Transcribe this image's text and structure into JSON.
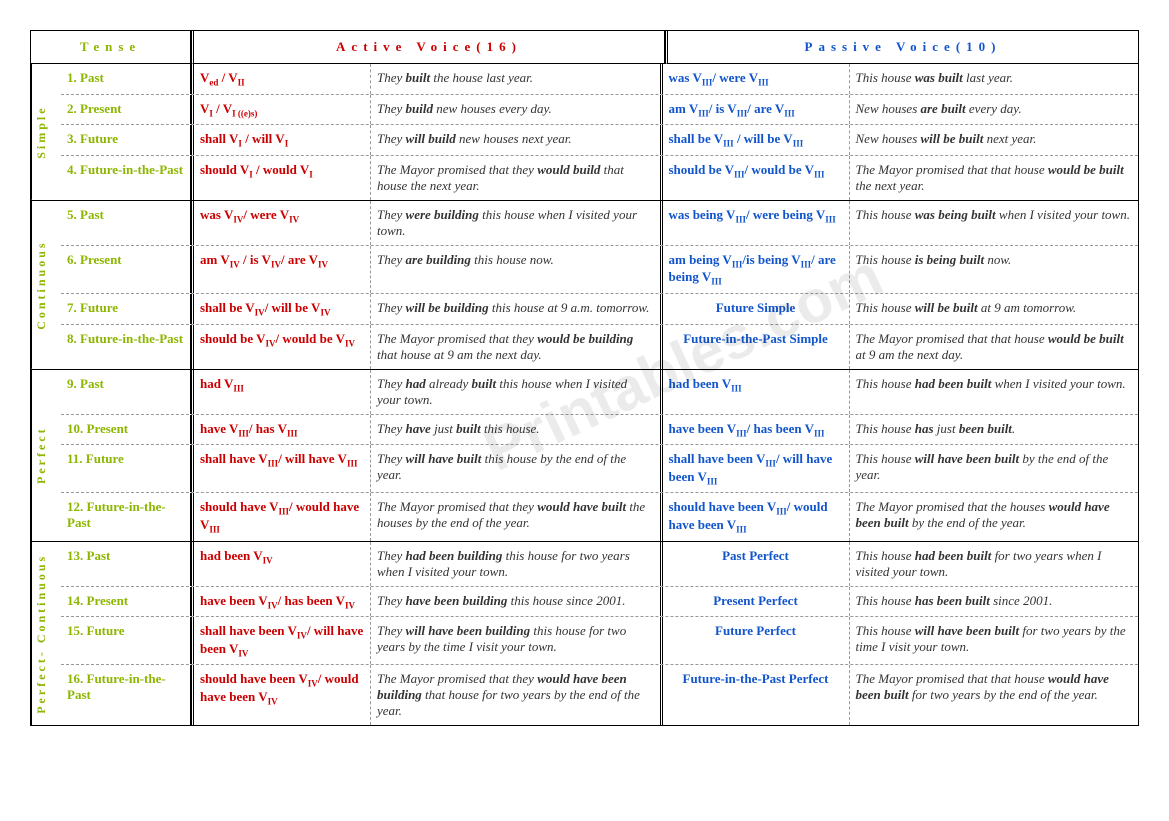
{
  "header": {
    "tense": "Tense",
    "active": "Active Voice(16)",
    "passive": "Passive Voice(10)"
  },
  "groups": [
    {
      "aspect": "Simple",
      "rows": [
        {
          "n": "1. Past",
          "af": "V<sub>ed</sub> / V<sub>II</sub>",
          "ae": "They <b>built</b> the house last year.",
          "pf": "was V<sub>III</sub>/ were V<sub>III</sub>",
          "pe": "This house <b>was built</b> last year."
        },
        {
          "n": "2. Present",
          "af": "V<sub>I</sub> / V<sub>I ((e)s)</sub>",
          "ae": "They <b>build</b> new houses every day.",
          "pf": "am V<sub>III</sub>/ is V<sub>III</sub>/ are V<sub>III</sub>",
          "pe": "New houses <b>are built</b> every day."
        },
        {
          "n": "3. Future",
          "af": "shall V<sub>I</sub> / will V<sub>I</sub>",
          "ae": "They <b>will build</b> new houses next year.",
          "pf": "shall be V<sub>III</sub> / will be V<sub>III</sub>",
          "pe": "New houses <b>will be built</b> next year."
        },
        {
          "n": "4. Future-in-the-Past",
          "af": "should V<sub>I</sub> / would V<sub>I</sub>",
          "ae": "The Mayor promised that they <b>would build</b> that house the next year.",
          "pf": "should be V<sub>III</sub>/ would be V<sub>III</sub>",
          "pe": "The Mayor promised that that house <b>would be built</b> the next year."
        }
      ]
    },
    {
      "aspect": "Continuous",
      "rows": [
        {
          "n": "5. Past",
          "af": "was V<sub>IV</sub>/ were V<sub>IV</sub>",
          "ae": "They <b>were building</b> this house when I visited your town.",
          "pf": "was being V<sub>III</sub>/ were being V<sub>III</sub>",
          "pe": "This house <b>was being built</b> when I visited your town."
        },
        {
          "n": "6. Present",
          "af": "am V<sub>IV</sub> / is V<sub>IV</sub>/ are V<sub>IV</sub>",
          "ae": "They <b>are building</b> this house now.",
          "pf": "am being V<sub>III</sub>/is being V<sub>III</sub>/ are being V<sub>III</sub>",
          "pe": "This house <b>is being built</b> now."
        },
        {
          "n": "7. Future",
          "af": "shall be V<sub>IV</sub>/ will be V<sub>IV</sub>",
          "ae": "They <b>will be building</b> this house at 9 a.m. tomorrow.",
          "pf": "Future Simple",
          "pe": "This house <b>will be built</b> at 9 am tomorrow.",
          "center": true
        },
        {
          "n": "8. Future-in-the-Past",
          "af": "should be V<sub>IV</sub>/ would be V<sub>IV</sub>",
          "ae": "The Mayor promised that they <b>would be building</b> that house at 9 am the next day.",
          "pf": "Future-in-the-Past Simple",
          "pe": "The Mayor promised that that house <b>would be built</b> at 9 am the next day.",
          "center": true
        }
      ]
    },
    {
      "aspect": "Perfect",
      "rows": [
        {
          "n": "9. Past",
          "af": "had V<sub>III</sub>",
          "ae": "They <b>had</b> already <b>built</b> this house when I visited your town.",
          "pf": "had been V<sub>III</sub>",
          "pe": "This house <b>had been built</b> when I visited your town."
        },
        {
          "n": "10. Present",
          "af": "have V<sub>III</sub>/ has V<sub>III</sub>",
          "ae": "They <b>have</b> just <b>built</b> this house.",
          "pf": "have been V<sub>III</sub>/ has been V<sub>III</sub>",
          "pe": "This house <b>has</b> just <b>been built</b>."
        },
        {
          "n": "11. Future",
          "af": "shall have V<sub>III</sub>/ will have V<sub>III</sub>",
          "ae": "They <b>will have built</b> this house by the end of the year.",
          "pf": "shall have been V<sub>III</sub>/ will have been V<sub>III</sub>",
          "pe": "This house <b>will have been built</b> by the end of the year."
        },
        {
          "n": "12. Future-in-the-Past",
          "af": "should have V<sub>III</sub>/ would have V<sub>III</sub>",
          "ae": "The Mayor promised that they <b>would have built</b> the houses by the end of the year.",
          "pf": "should have been V<sub>III</sub>/ would have been V<sub>III</sub>",
          "pe": "The Mayor promised that the houses <b>would have been built</b> by the end of the year."
        }
      ]
    },
    {
      "aspect": "Perfect- Continuous",
      "rows": [
        {
          "n": "13. Past",
          "af": "had been V<sub>IV</sub>",
          "ae": "They <b>had been building</b> this house for two years when I visited your town.",
          "pf": "Past Perfect",
          "pe": "This house <b>had been built</b> for two years when I visited your town.",
          "center": true
        },
        {
          "n": "14. Present",
          "af": "have been V<sub>IV</sub>/ has been V<sub>IV</sub>",
          "ae": "They <b>have been building</b> this house since 2001.",
          "pf": "Present Perfect",
          "pe": "This house <b>has been built</b> since 2001.",
          "center": true
        },
        {
          "n": "15. Future",
          "af": "shall have been V<sub>IV</sub>/ will have been V<sub>IV</sub>",
          "ae": "They <b>will have been building</b> this house for two years by the time I visit your town.",
          "pf": "Future Perfect",
          "pe": "This house <b>will have been built</b> for two years by the time I visit your town.",
          "center": true
        },
        {
          "n": "16. Future-in-the-Past",
          "af": "should have been V<sub>IV</sub>/ would have been V<sub>IV</sub>",
          "ae": "The Mayor promised that they <b>would have been building</b> that house for two years by the end of the year.",
          "pf": "Future-in-the-Past Perfect",
          "pe": "The Mayor promised that that house <b>would have been built</b> for two years by the end of the year.",
          "center": true
        }
      ]
    }
  ],
  "watermark": "Printables.com"
}
